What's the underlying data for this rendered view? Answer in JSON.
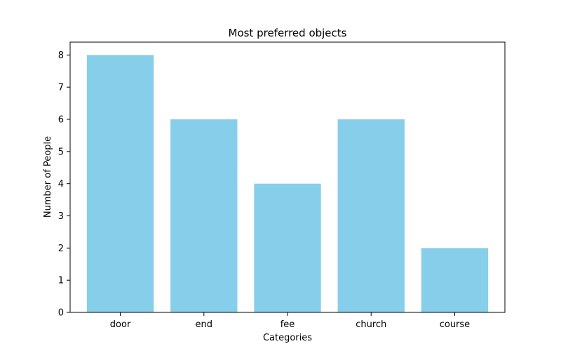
{
  "chart_data": {
    "type": "bar",
    "title": "Most preferred objects",
    "xlabel": "Categories",
    "ylabel": "Number of People",
    "categories": [
      "door",
      "end",
      "fee",
      "church",
      "course"
    ],
    "values": [
      8,
      6,
      4,
      6,
      2
    ],
    "ylim": [
      0,
      8.4
    ],
    "yticks": [
      0,
      1,
      2,
      3,
      4,
      5,
      6,
      7,
      8
    ],
    "bar_color": "#87ceeb",
    "grid": false,
    "legend": "none"
  }
}
